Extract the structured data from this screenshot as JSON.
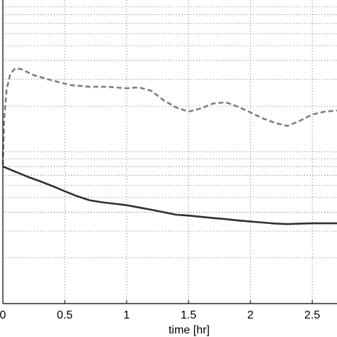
{
  "chart_data": {
    "type": "line",
    "xlabel": "time [hr]",
    "ylabel": "",
    "title": "",
    "xlim": [
      0,
      2.7
    ],
    "y_scale": "log",
    "ylim": [
      0.1,
      10
    ],
    "grid": true,
    "x_ticks": [
      0,
      0.5,
      1,
      1.5,
      2,
      2.5
    ],
    "x_tick_labels": [
      "0",
      "0.5",
      "1",
      "1.5",
      "2",
      "2.5"
    ],
    "series": [
      {
        "style": "dashed",
        "color": "#7f7f7f",
        "x": [
          0,
          0.01,
          0.03,
          0.06,
          0.1,
          0.15,
          0.25,
          0.4,
          0.55,
          0.7,
          0.85,
          1.0,
          1.1,
          1.2,
          1.3,
          1.4,
          1.5,
          1.6,
          1.7,
          1.8,
          1.9,
          2.0,
          2.1,
          2.2,
          2.3,
          2.4,
          2.5,
          2.6,
          2.7
        ],
        "y": [
          0.82,
          1.6,
          2.55,
          3.25,
          3.55,
          3.5,
          3.2,
          2.95,
          2.75,
          2.68,
          2.68,
          2.62,
          2.66,
          2.52,
          2.18,
          1.96,
          1.84,
          1.93,
          2.08,
          2.12,
          1.98,
          1.82,
          1.66,
          1.55,
          1.48,
          1.6,
          1.76,
          1.84,
          1.87
        ]
      },
      {
        "style": "solid",
        "color": "#2f2f2f",
        "x": [
          0,
          0.1,
          0.2,
          0.3,
          0.4,
          0.5,
          0.6,
          0.7,
          0.8,
          0.9,
          1.0,
          1.1,
          1.2,
          1.3,
          1.4,
          1.5,
          1.6,
          1.7,
          1.8,
          1.9,
          2.0,
          2.1,
          2.2,
          2.3,
          2.4,
          2.5,
          2.6,
          2.7
        ],
        "y": [
          0.8,
          0.74,
          0.685,
          0.64,
          0.595,
          0.55,
          0.51,
          0.48,
          0.465,
          0.455,
          0.445,
          0.43,
          0.415,
          0.4,
          0.385,
          0.38,
          0.373,
          0.366,
          0.36,
          0.353,
          0.347,
          0.342,
          0.337,
          0.334,
          0.336,
          0.338,
          0.338,
          0.338
        ]
      }
    ]
  }
}
